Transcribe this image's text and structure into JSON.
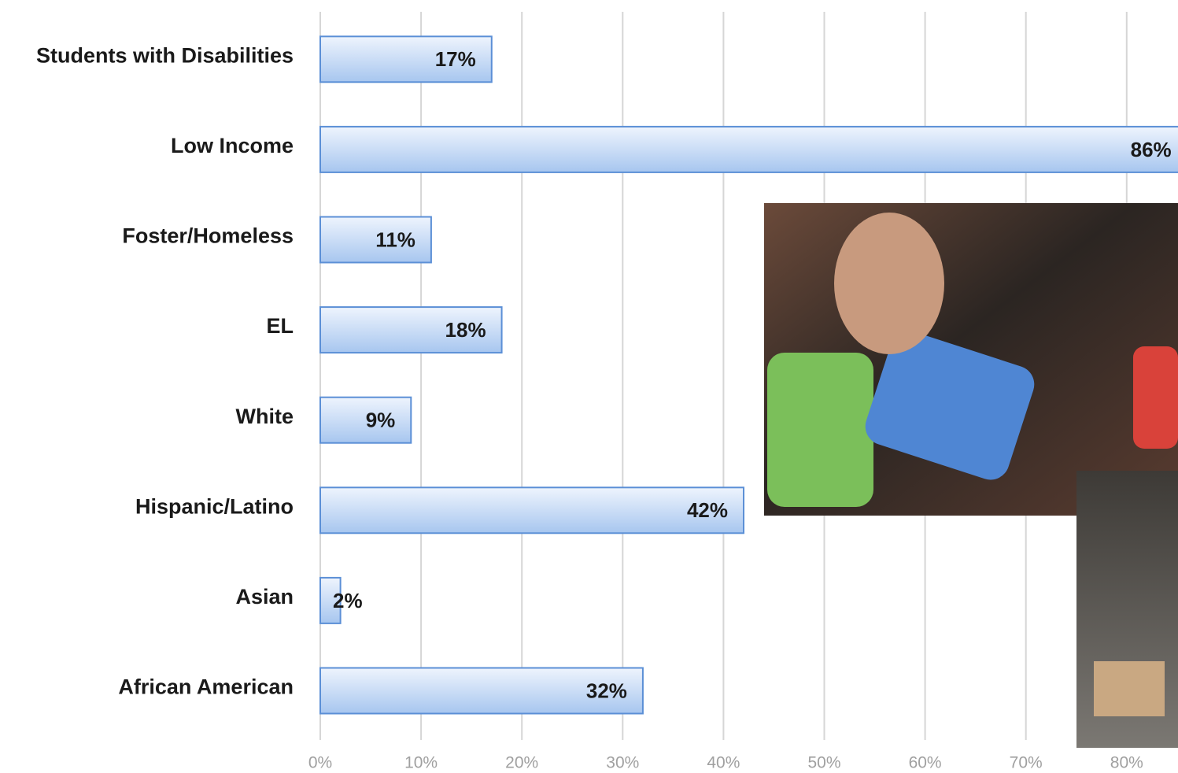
{
  "chart_data": {
    "type": "bar",
    "orientation": "horizontal",
    "categories": [
      "Students with Disabilities",
      "Low Income",
      "Foster/Homeless",
      "EL",
      "White",
      "Hispanic/Latino",
      "Asian",
      "African American"
    ],
    "values": [
      17,
      86,
      11,
      18,
      9,
      42,
      2,
      32
    ],
    "value_labels": [
      "17%",
      "86%",
      "11%",
      "18%",
      "9%",
      "42%",
      "2%",
      "32%"
    ],
    "color": "#b9d3f5",
    "xlim": [
      0,
      90
    ],
    "xticks": [
      {
        "value": 0,
        "label": "0%"
      },
      {
        "value": 10,
        "label": "10%"
      },
      {
        "value": 20,
        "label": "20%"
      },
      {
        "value": 30,
        "label": "30%"
      },
      {
        "value": 40,
        "label": "40%"
      },
      {
        "value": 50,
        "label": "50%"
      },
      {
        "value": 60,
        "label": "60%"
      },
      {
        "value": 70,
        "label": "70%"
      },
      {
        "value": 80,
        "label": "80%"
      }
    ],
    "grid": true
  }
}
